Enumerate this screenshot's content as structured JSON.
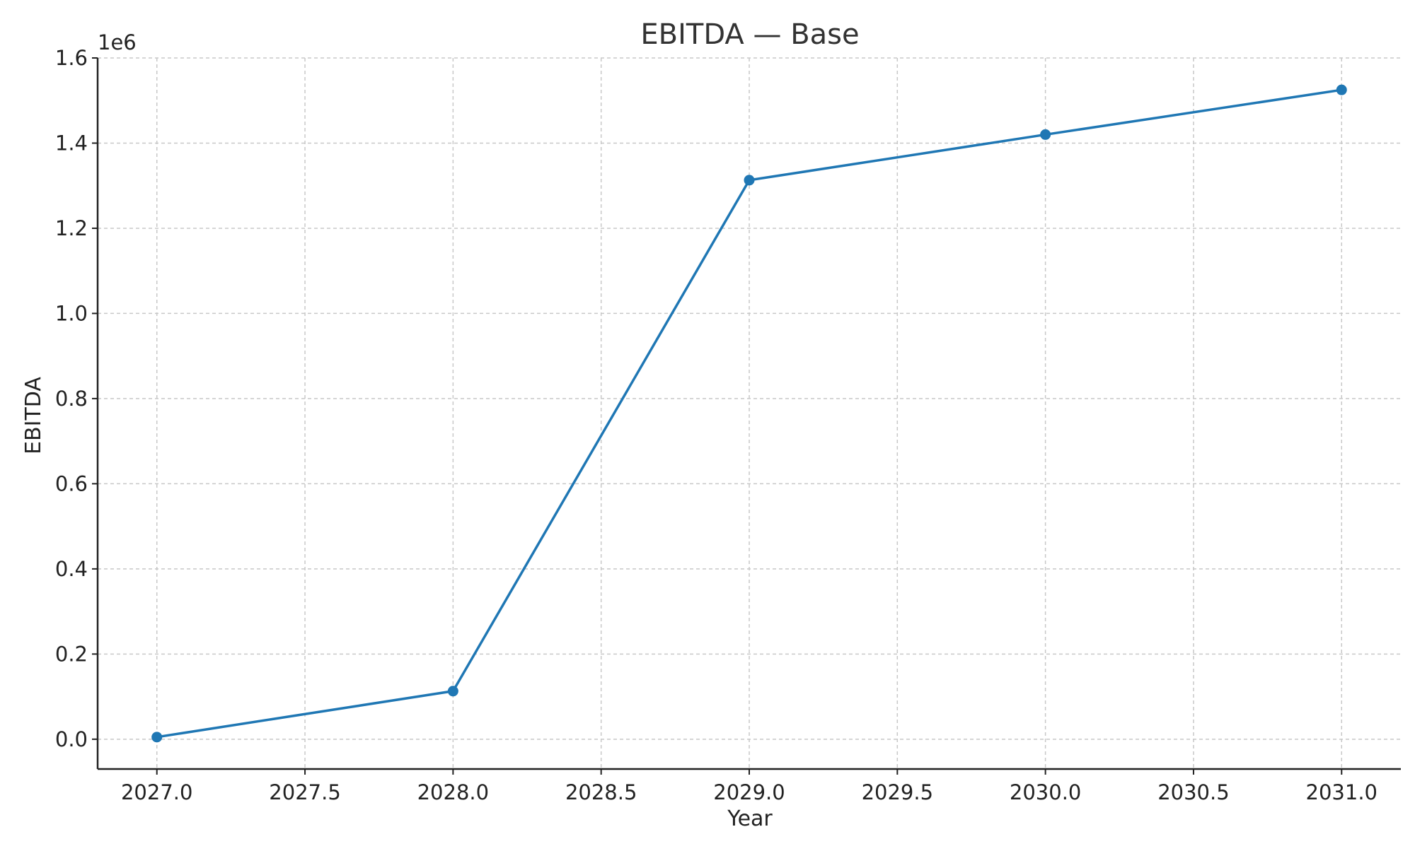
{
  "chart_data": {
    "type": "line",
    "title": "EBITDA — Base",
    "xlabel": "Year",
    "ylabel": "EBITDA",
    "y_offset_label": "1e6",
    "x": [
      2027,
      2028,
      2029,
      2030,
      2031
    ],
    "series": [
      {
        "values": [
          5000,
          113000,
          1313000,
          1420000,
          1525000
        ],
        "color": "#1f77b4",
        "marker": "circle"
      }
    ],
    "xlim": [
      2026.8,
      2031.2
    ],
    "ylim": [
      -70000,
      1600000
    ],
    "x_ticks": [
      2027.0,
      2027.5,
      2028.0,
      2028.5,
      2029.0,
      2029.5,
      2030.0,
      2030.5,
      2031.0
    ],
    "x_tick_labels": [
      "2027.0",
      "2027.5",
      "2028.0",
      "2028.5",
      "2029.0",
      "2029.5",
      "2030.0",
      "2030.5",
      "2031.0"
    ],
    "y_ticks": [
      0,
      200000,
      400000,
      600000,
      800000,
      1000000,
      1200000,
      1400000,
      1600000
    ],
    "y_tick_labels": [
      "0.0",
      "0.2",
      "0.4",
      "0.6",
      "0.8",
      "1.0",
      "1.2",
      "1.4",
      "1.6"
    ],
    "grid": true,
    "grid_style": "dashed"
  }
}
